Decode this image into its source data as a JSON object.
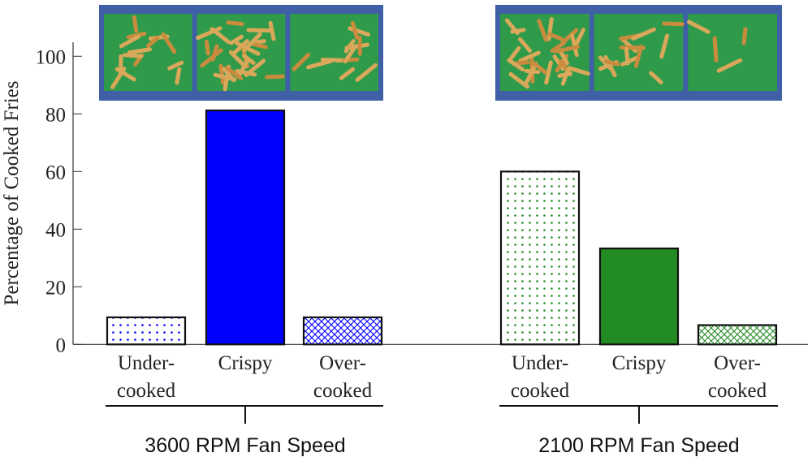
{
  "chart_data": {
    "type": "bar",
    "ylabel": "Percentage of Cooked Fries",
    "ylim": [
      0,
      105
    ],
    "yticks": [
      0,
      20,
      40,
      60,
      80,
      100
    ],
    "grid": false,
    "groups": [
      {
        "label": "3600 RPM Fan Speed",
        "color": "#0000ff",
        "categories": [
          [
            "Under-",
            "cooked"
          ],
          [
            "Crispy"
          ],
          [
            "Over-",
            "cooked"
          ]
        ],
        "patterns": [
          "dots",
          "solid",
          "crosshatch"
        ],
        "values": [
          9.4,
          81.2,
          9.4
        ]
      },
      {
        "label": "2100 RPM Fan Speed",
        "color": "#228b22",
        "categories": [
          [
            "Under-",
            "cooked"
          ],
          [
            "Crispy"
          ],
          [
            "Over-",
            "cooked"
          ]
        ],
        "patterns": [
          "dots",
          "solid",
          "crosshatch"
        ],
        "values": [
          60.0,
          33.3,
          6.7
        ]
      }
    ]
  }
}
